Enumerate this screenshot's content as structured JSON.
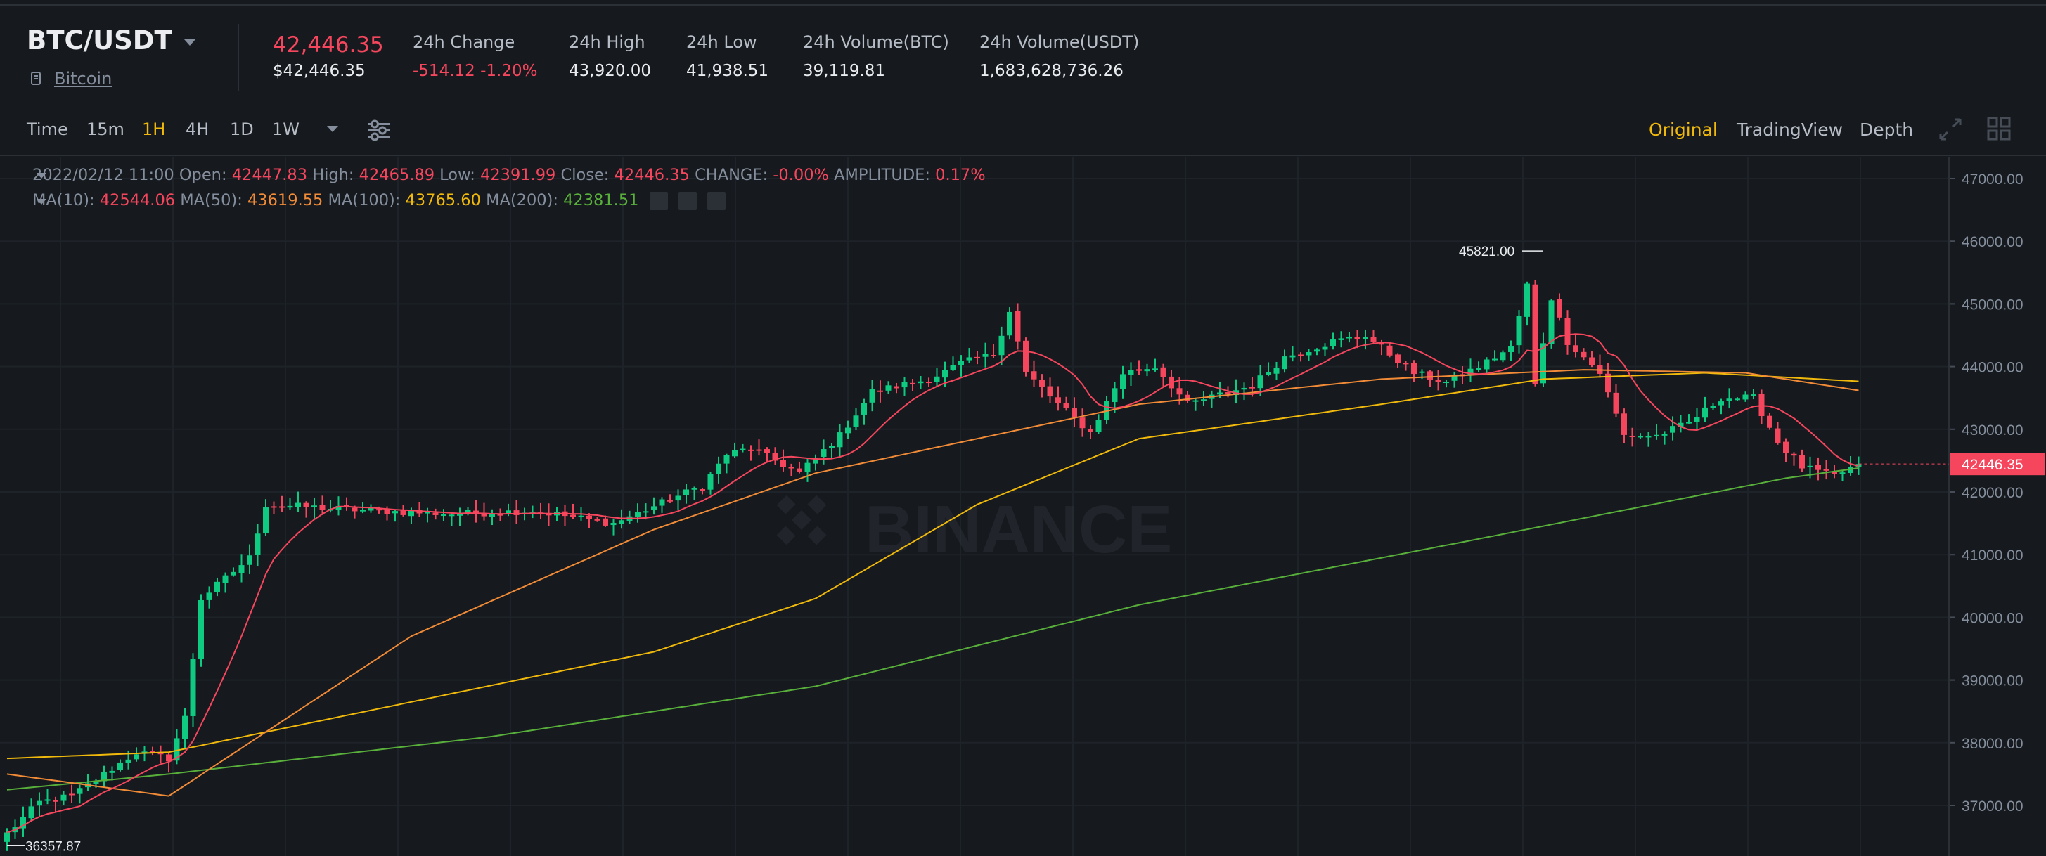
{
  "header": {
    "symbol": "BTC/USDT",
    "coin_name": "Bitcoin",
    "last_price": "42,446.35",
    "last_price_usd": "$42,446.35",
    "stats": [
      {
        "label": "24h Change",
        "value": "-514.12 -1.20%",
        "negative": true
      },
      {
        "label": "24h High",
        "value": "43,920.00"
      },
      {
        "label": "24h Low",
        "value": "41,938.51"
      },
      {
        "label": "24h Volume(BTC)",
        "value": "39,119.81"
      },
      {
        "label": "24h Volume(USDT)",
        "value": "1,683,628,736.26"
      }
    ]
  },
  "toolbar": {
    "intervals": [
      "Time",
      "15m",
      "1H",
      "4H",
      "1D",
      "1W"
    ],
    "active_interval": "1H",
    "views": [
      "Original",
      "TradingView",
      "Depth"
    ],
    "active_view": "Original"
  },
  "legend": {
    "date": "2022/02/12 11:00",
    "open_label": "Open:",
    "open": "42447.83",
    "high_label": "High:",
    "high": "42465.89",
    "low_label": "Low:",
    "low": "42391.99",
    "close_label": "Close:",
    "close": "42446.35",
    "change_label": "CHANGE:",
    "change": "-0.00%",
    "amplitude_label": "AMPLITUDE:",
    "amplitude": "0.17%",
    "ma10_label": "MA(10):",
    "ma10": "42544.06",
    "ma50_label": "MA(50):",
    "ma50": "43619.55",
    "ma100_label": "MA(100):",
    "ma100": "43765.60",
    "ma200_label": "MA(200):",
    "ma200": "42381.51"
  },
  "colors": {
    "background": "#161a1e",
    "up": "#0ecb81",
    "down": "#f6465d",
    "accent": "#f0b90b",
    "ma10": "#f6465d",
    "ma50": "#f28b37",
    "ma100": "#f0b90b",
    "ma200": "#58b03b"
  },
  "chart_data": {
    "type": "candlestick",
    "watermark": "BINANCE",
    "y_axis_ticks": [
      "47000.00",
      "46000.00",
      "45000.00",
      "44000.00",
      "43000.00",
      "42000.00",
      "41000.00",
      "40000.00",
      "39000.00",
      "38000.00",
      "37000.00"
    ],
    "ylim": [
      36300,
      47400
    ],
    "current_price_label": "42446.35",
    "max_label": "45821.00",
    "min_label": "36357.87",
    "candle_count": 230,
    "close_anchors": [
      [
        0,
        36550
      ],
      [
        4,
        37050
      ],
      [
        8,
        37150
      ],
      [
        12,
        37500
      ],
      [
        16,
        37850
      ],
      [
        20,
        37750
      ],
      [
        22,
        38400
      ],
      [
        24,
        40300
      ],
      [
        30,
        40950
      ],
      [
        32,
        41800
      ],
      [
        45,
        41700
      ],
      [
        55,
        41650
      ],
      [
        65,
        41700
      ],
      [
        75,
        41500
      ],
      [
        86,
        42100
      ],
      [
        89,
        42600
      ],
      [
        92,
        42700
      ],
      [
        98,
        42300
      ],
      [
        103,
        42900
      ],
      [
        107,
        43600
      ],
      [
        114,
        43800
      ],
      [
        118,
        44050
      ],
      [
        122,
        44200
      ],
      [
        124,
        44900
      ],
      [
        126,
        43900
      ],
      [
        130,
        43400
      ],
      [
        134,
        42950
      ],
      [
        138,
        43900
      ],
      [
        142,
        44000
      ],
      [
        146,
        43400
      ],
      [
        154,
        43700
      ],
      [
        158,
        44150
      ],
      [
        164,
        44400
      ],
      [
        168,
        44500
      ],
      [
        174,
        43900
      ],
      [
        178,
        43750
      ],
      [
        182,
        44000
      ],
      [
        186,
        44300
      ],
      [
        188,
        45300
      ],
      [
        189,
        43700
      ],
      [
        191,
        45100
      ],
      [
        193,
        44400
      ],
      [
        197,
        43900
      ],
      [
        200,
        42900
      ],
      [
        204,
        42900
      ],
      [
        208,
        43100
      ],
      [
        212,
        43500
      ],
      [
        216,
        43500
      ],
      [
        219,
        42800
      ],
      [
        222,
        42400
      ],
      [
        226,
        42250
      ],
      [
        229,
        42446
      ]
    ],
    "ma200_anchors": [
      [
        0,
        37250
      ],
      [
        20,
        37500
      ],
      [
        60,
        38100
      ],
      [
        100,
        38900
      ],
      [
        140,
        40200
      ],
      [
        180,
        41200
      ],
      [
        220,
        42220
      ],
      [
        229,
        42381
      ]
    ],
    "ma100_anchors": [
      [
        0,
        37750
      ],
      [
        20,
        37850
      ],
      [
        50,
        38650
      ],
      [
        80,
        39450
      ],
      [
        100,
        40300
      ],
      [
        120,
        41800
      ],
      [
        140,
        42850
      ],
      [
        170,
        43400
      ],
      [
        190,
        43800
      ],
      [
        210,
        43900
      ],
      [
        229,
        43765
      ]
    ],
    "ma50_anchors": [
      [
        0,
        37500
      ],
      [
        20,
        37150
      ],
      [
        50,
        39700
      ],
      [
        80,
        41400
      ],
      [
        100,
        42300
      ],
      [
        120,
        42850
      ],
      [
        140,
        43400
      ],
      [
        170,
        43800
      ],
      [
        195,
        43950
      ],
      [
        215,
        43900
      ],
      [
        229,
        43620
      ]
    ]
  }
}
